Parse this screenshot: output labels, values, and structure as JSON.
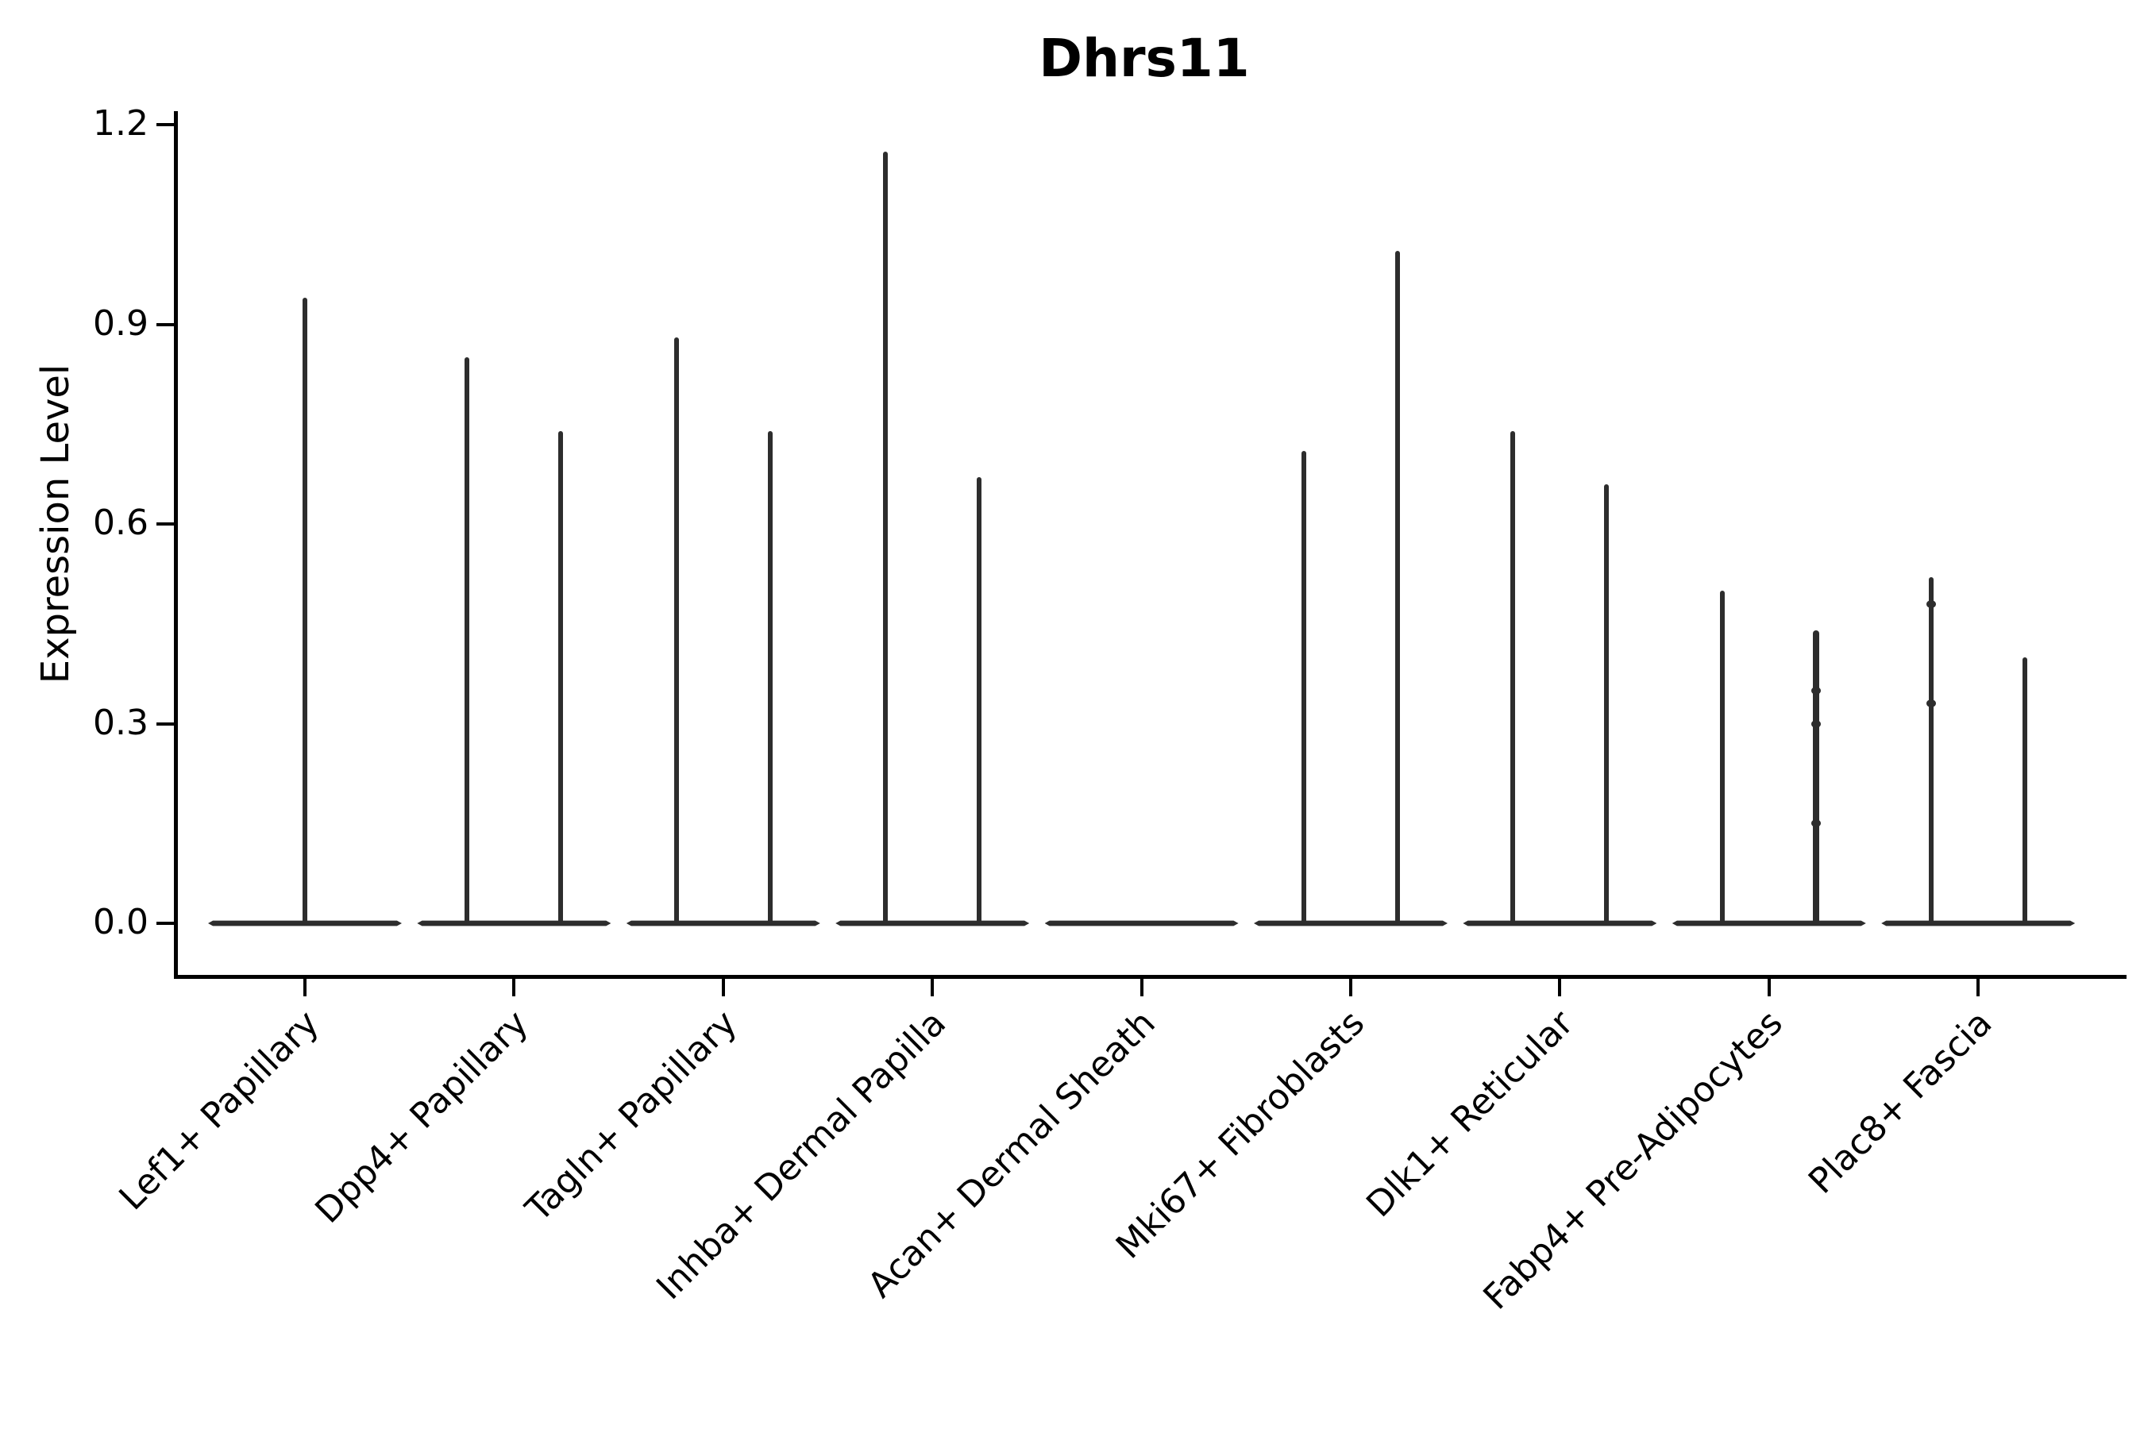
{
  "title": "Dhrs11",
  "colors": {
    "line": "#2d2d2d",
    "spine": "#000000",
    "text": "#000000",
    "background": "#ffffff"
  },
  "chart_data": {
    "type": "violin",
    "title": "Dhrs11",
    "xlabel": "",
    "ylabel": "Expression Level",
    "ylim": [
      0,
      1.2
    ],
    "yticks": [
      0.0,
      0.3,
      0.6,
      0.9,
      1.2
    ],
    "ytick_labels": [
      "0.0",
      "0.3",
      "0.6",
      "0.9",
      "1.2"
    ],
    "grid": false,
    "legend": null,
    "categories": [
      "Lef1+ Papillary",
      "Dpp4+ Papillary",
      "Tagln+ Papillary",
      "Inhba+ Dermal Papilla",
      "Acan+ Dermal Sheath",
      "Mki67+ Fibroblasts",
      "Dlk1+ Reticular",
      "Fabp4+ Pre-Adipocytes",
      "Plac8+ Fascia"
    ],
    "baseline_value": 0.0,
    "violins": [
      {
        "category": "Lef1+ Papillary",
        "spikes": [
          {
            "position": "center",
            "max": 0.94
          }
        ]
      },
      {
        "category": "Dpp4+ Papillary",
        "spikes": [
          {
            "position": "left",
            "max": 0.85
          },
          {
            "position": "right",
            "max": 0.74
          }
        ]
      },
      {
        "category": "Tagln+ Papillary",
        "spikes": [
          {
            "position": "left",
            "max": 0.88
          },
          {
            "position": "right",
            "max": 0.74
          }
        ]
      },
      {
        "category": "Inhba+ Dermal Papilla",
        "spikes": [
          {
            "position": "left",
            "max": 1.16
          },
          {
            "position": "right",
            "max": 0.67
          }
        ]
      },
      {
        "category": "Acan+ Dermal Sheath",
        "spikes": []
      },
      {
        "category": "Mki67+ Fibroblasts",
        "spikes": [
          {
            "position": "left",
            "max": 0.71
          },
          {
            "position": "right",
            "max": 1.01
          }
        ]
      },
      {
        "category": "Dlk1+ Reticular",
        "spikes": [
          {
            "position": "left",
            "max": 0.74
          },
          {
            "position": "right",
            "max": 0.66
          }
        ]
      },
      {
        "category": "Fabp4+ Pre-Adipocytes",
        "spikes": [
          {
            "position": "left",
            "max": 0.5
          },
          {
            "position": "right",
            "max": 0.44,
            "thick": true,
            "knots": [
              0.35,
              0.3,
              0.15
            ]
          }
        ]
      },
      {
        "category": "Plac8+ Fascia",
        "spikes": [
          {
            "position": "left",
            "max": 0.52,
            "knots": [
              0.48,
              0.33
            ]
          },
          {
            "position": "right",
            "max": 0.4
          }
        ]
      }
    ]
  }
}
